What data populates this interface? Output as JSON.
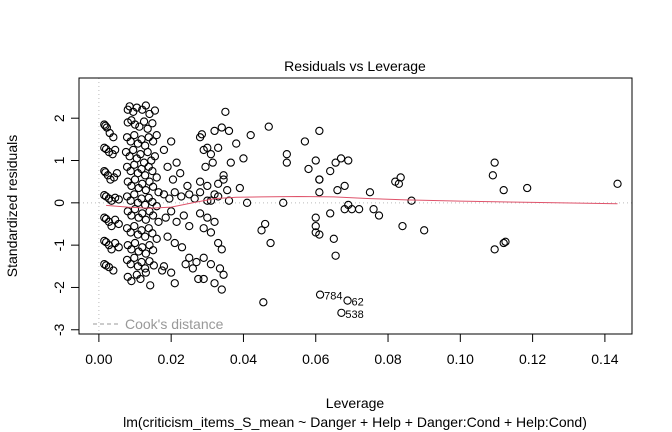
{
  "chart_data": {
    "type": "scatter",
    "title": "Residuals vs Leverage",
    "xlabel": "Leverage",
    "ylabel": "Standardized residuals",
    "subtitle": "lm(criticism_items_S_mean ~ Danger + Help + Danger:Cond + Help:Cond)",
    "xlim": [
      -0.0055,
      0.1475
    ],
    "ylim": [
      -3.1,
      2.95
    ],
    "x_ticks": [
      0.0,
      0.02,
      0.04,
      0.06,
      0.08,
      0.1,
      0.12,
      0.14
    ],
    "x_tick_labels": [
      "0.00",
      "0.02",
      "0.04",
      "0.06",
      "0.08",
      "0.10",
      "0.12",
      "0.14"
    ],
    "y_ticks": [
      -3,
      -2,
      -1,
      0,
      1,
      2
    ],
    "y_tick_labels": [
      "-3",
      "-2",
      "-1",
      "0",
      "1",
      "2"
    ],
    "grid": false,
    "legend": {
      "position": "bottom-left",
      "entries": [
        {
          "label": "Cook's distance",
          "style": "dashed",
          "color": "#999999"
        }
      ]
    },
    "reference_lines": {
      "y_zero_dotted": true,
      "x_zero_dotted": true,
      "color": "#bbbbbb"
    },
    "smooth_line": {
      "color": "#DF536B",
      "x": [
        0.002,
        0.008,
        0.014,
        0.02,
        0.026,
        0.032,
        0.038,
        0.045,
        0.055,
        0.065,
        0.075,
        0.085,
        0.1,
        0.12,
        0.1435
      ],
      "y": [
        -0.06,
        -0.1,
        -0.13,
        -0.1,
        0.0,
        0.1,
        0.13,
        0.14,
        0.15,
        0.14,
        0.1,
        0.07,
        0.04,
        0.01,
        -0.02
      ]
    },
    "labeled_points": [
      {
        "label": "784",
        "x": 0.0612,
        "y": -2.17
      },
      {
        "label": "62",
        "x": 0.0688,
        "y": -2.31
      },
      {
        "label": "538",
        "x": 0.0671,
        "y": -2.6
      }
    ],
    "points": [
      [
        0.0015,
        1.85
      ],
      [
        0.0018,
        1.82
      ],
      [
        0.0022,
        1.78
      ],
      [
        0.003,
        1.65
      ],
      [
        0.004,
        1.55
      ],
      [
        0.0015,
        1.3
      ],
      [
        0.002,
        1.27
      ],
      [
        0.0028,
        1.2
      ],
      [
        0.0038,
        1.15
      ],
      [
        0.0045,
        1.25
      ],
      [
        0.0015,
        0.75
      ],
      [
        0.0018,
        0.72
      ],
      [
        0.0025,
        0.65
      ],
      [
        0.0032,
        0.55
      ],
      [
        0.0042,
        0.6
      ],
      [
        0.005,
        0.7
      ],
      [
        0.0015,
        0.18
      ],
      [
        0.002,
        0.15
      ],
      [
        0.0028,
        0.1
      ],
      [
        0.0035,
        0.05
      ],
      [
        0.0045,
        0.12
      ],
      [
        0.0055,
        0.08
      ],
      [
        0.0015,
        -0.35
      ],
      [
        0.002,
        -0.38
      ],
      [
        0.0028,
        -0.45
      ],
      [
        0.0035,
        -0.55
      ],
      [
        0.0045,
        -0.4
      ],
      [
        0.0055,
        -0.5
      ],
      [
        0.0015,
        -0.9
      ],
      [
        0.002,
        -0.93
      ],
      [
        0.0028,
        -1.0
      ],
      [
        0.0035,
        -1.1
      ],
      [
        0.0045,
        -0.95
      ],
      [
        0.0055,
        -1.05
      ],
      [
        0.0015,
        -1.45
      ],
      [
        0.002,
        -1.48
      ],
      [
        0.0028,
        -1.52
      ],
      [
        0.004,
        -1.6
      ],
      [
        0.008,
        2.2
      ],
      [
        0.0085,
        2.28
      ],
      [
        0.0095,
        2.15
      ],
      [
        0.0105,
        2.25
      ],
      [
        0.012,
        2.2
      ],
      [
        0.013,
        2.3
      ],
      [
        0.014,
        2.1
      ],
      [
        0.0155,
        2.18
      ],
      [
        0.008,
        1.9
      ],
      [
        0.009,
        1.95
      ],
      [
        0.01,
        1.85
      ],
      [
        0.0112,
        1.8
      ],
      [
        0.0125,
        1.92
      ],
      [
        0.0135,
        1.75
      ],
      [
        0.0148,
        1.88
      ],
      [
        0.016,
        1.6
      ],
      [
        0.0078,
        1.55
      ],
      [
        0.0088,
        1.45
      ],
      [
        0.0098,
        1.6
      ],
      [
        0.0108,
        1.4
      ],
      [
        0.0118,
        1.5
      ],
      [
        0.0128,
        1.35
      ],
      [
        0.0138,
        1.55
      ],
      [
        0.015,
        1.45
      ],
      [
        0.0075,
        1.2
      ],
      [
        0.0085,
        1.1
      ],
      [
        0.0095,
        1.25
      ],
      [
        0.0105,
        1.05
      ],
      [
        0.0115,
        1.15
      ],
      [
        0.0125,
        0.95
      ],
      [
        0.0135,
        1.2
      ],
      [
        0.0145,
        1.0
      ],
      [
        0.0155,
        1.1
      ],
      [
        0.0078,
        0.85
      ],
      [
        0.0088,
        0.75
      ],
      [
        0.0098,
        0.9
      ],
      [
        0.0108,
        0.7
      ],
      [
        0.0118,
        0.8
      ],
      [
        0.0128,
        0.65
      ],
      [
        0.0138,
        0.85
      ],
      [
        0.0148,
        0.75
      ],
      [
        0.016,
        0.6
      ],
      [
        0.008,
        0.5
      ],
      [
        0.009,
        0.4
      ],
      [
        0.01,
        0.55
      ],
      [
        0.011,
        0.35
      ],
      [
        0.012,
        0.45
      ],
      [
        0.013,
        0.3
      ],
      [
        0.014,
        0.5
      ],
      [
        0.015,
        0.38
      ],
      [
        0.0165,
        0.25
      ],
      [
        0.0078,
        0.15
      ],
      [
        0.0088,
        0.05
      ],
      [
        0.0098,
        0.2
      ],
      [
        0.0108,
        0.0
      ],
      [
        0.0118,
        0.1
      ],
      [
        0.0128,
        -0.05
      ],
      [
        0.0138,
        0.12
      ],
      [
        0.0148,
        0.02
      ],
      [
        0.016,
        -0.08
      ],
      [
        0.008,
        -0.2
      ],
      [
        0.009,
        -0.3
      ],
      [
        0.01,
        -0.15
      ],
      [
        0.011,
        -0.35
      ],
      [
        0.012,
        -0.25
      ],
      [
        0.013,
        -0.4
      ],
      [
        0.014,
        -0.2
      ],
      [
        0.015,
        -0.3
      ],
      [
        0.0165,
        -0.45
      ],
      [
        0.0078,
        -0.6
      ],
      [
        0.0088,
        -0.7
      ],
      [
        0.0098,
        -0.55
      ],
      [
        0.0108,
        -0.75
      ],
      [
        0.0118,
        -0.65
      ],
      [
        0.0128,
        -0.8
      ],
      [
        0.0138,
        -0.6
      ],
      [
        0.0148,
        -0.72
      ],
      [
        0.016,
        -0.85
      ],
      [
        0.008,
        -1.0
      ],
      [
        0.009,
        -1.1
      ],
      [
        0.01,
        -0.95
      ],
      [
        0.011,
        -1.15
      ],
      [
        0.012,
        -1.05
      ],
      [
        0.013,
        -1.2
      ],
      [
        0.014,
        -1.0
      ],
      [
        0.015,
        -1.12
      ],
      [
        0.0078,
        -1.35
      ],
      [
        0.0088,
        -1.45
      ],
      [
        0.0098,
        -1.3
      ],
      [
        0.0108,
        -1.5
      ],
      [
        0.0118,
        -1.4
      ],
      [
        0.0128,
        -1.55
      ],
      [
        0.014,
        -1.38
      ],
      [
        0.0152,
        -1.48
      ],
      [
        0.008,
        -1.75
      ],
      [
        0.009,
        -1.85
      ],
      [
        0.0105,
        -1.7
      ],
      [
        0.0115,
        -1.8
      ],
      [
        0.013,
        -1.65
      ],
      [
        0.0142,
        -1.95
      ],
      [
        0.0175,
        -1.6
      ],
      [
        0.018,
        1.25
      ],
      [
        0.02,
        1.45
      ],
      [
        0.0215,
        0.95
      ],
      [
        0.019,
        0.85
      ],
      [
        0.0205,
        0.55
      ],
      [
        0.0225,
        0.7
      ],
      [
        0.0245,
        0.4
      ],
      [
        0.018,
        0.2
      ],
      [
        0.0195,
        0.1
      ],
      [
        0.021,
        0.25
      ],
      [
        0.0228,
        0.15
      ],
      [
        0.025,
        0.2
      ],
      [
        0.0265,
        0.1
      ],
      [
        0.028,
        0.25
      ],
      [
        0.03,
        0.05
      ],
      [
        0.032,
        0.2
      ],
      [
        0.0185,
        -0.35
      ],
      [
        0.02,
        -0.2
      ],
      [
        0.0215,
        -0.45
      ],
      [
        0.0235,
        -0.3
      ],
      [
        0.025,
        -0.55
      ],
      [
        0.019,
        -0.8
      ],
      [
        0.021,
        -0.95
      ],
      [
        0.023,
        -1.05
      ],
      [
        0.025,
        -1.3
      ],
      [
        0.027,
        -1.4
      ],
      [
        0.018,
        -1.5
      ],
      [
        0.02,
        -1.65
      ],
      [
        0.024,
        -1.45
      ],
      [
        0.026,
        -1.55
      ],
      [
        0.0275,
        -1.8
      ],
      [
        0.021,
        -1.9
      ],
      [
        0.028,
        1.55
      ],
      [
        0.0285,
        1.62
      ],
      [
        0.03,
        1.3
      ],
      [
        0.032,
        1.7
      ],
      [
        0.034,
        1.78
      ],
      [
        0.036,
        1.7
      ],
      [
        0.035,
        2.15
      ],
      [
        0.038,
        1.4
      ],
      [
        0.029,
        1.25
      ],
      [
        0.031,
        1.15
      ],
      [
        0.033,
        1.3
      ],
      [
        0.0295,
        0.85
      ],
      [
        0.0315,
        0.95
      ],
      [
        0.0345,
        0.65
      ],
      [
        0.0365,
        0.95
      ],
      [
        0.028,
        0.5
      ],
      [
        0.03,
        0.4
      ],
      [
        0.033,
        0.45
      ],
      [
        0.0345,
        0.55
      ],
      [
        0.0355,
        0.3
      ],
      [
        0.033,
        0.15
      ],
      [
        0.031,
        0.05
      ],
      [
        0.036,
        0.05
      ],
      [
        0.028,
        -0.25
      ],
      [
        0.03,
        -0.35
      ],
      [
        0.032,
        -0.45
      ],
      [
        0.029,
        -0.6
      ],
      [
        0.031,
        -0.7
      ],
      [
        0.033,
        -0.95
      ],
      [
        0.034,
        -1.1
      ],
      [
        0.029,
        -1.3
      ],
      [
        0.031,
        -1.45
      ],
      [
        0.0335,
        -1.55
      ],
      [
        0.0345,
        -1.7
      ],
      [
        0.029,
        -1.8
      ],
      [
        0.032,
        -1.9
      ],
      [
        0.034,
        -2.05
      ],
      [
        0.039,
        0.35
      ],
      [
        0.041,
        0.0
      ],
      [
        0.04,
        1.05
      ],
      [
        0.042,
        1.6
      ],
      [
        0.045,
        -0.65
      ],
      [
        0.046,
        -0.5
      ],
      [
        0.047,
        1.8
      ],
      [
        0.0475,
        -0.95
      ],
      [
        0.0455,
        -2.35
      ],
      [
        0.051,
        0.0
      ],
      [
        0.052,
        1.15
      ],
      [
        0.052,
        0.95
      ],
      [
        0.057,
        1.45
      ],
      [
        0.058,
        0.8
      ],
      [
        0.06,
        1.0
      ],
      [
        0.061,
        1.7
      ],
      [
        0.06,
        -0.35
      ],
      [
        0.06,
        -0.55
      ],
      [
        0.06,
        -0.7
      ],
      [
        0.061,
        -0.75
      ],
      [
        0.061,
        0.55
      ],
      [
        0.061,
        0.55
      ],
      [
        0.061,
        0.25
      ],
      [
        0.064,
        0.75
      ],
      [
        0.064,
        -0.25
      ],
      [
        0.065,
        -0.85
      ],
      [
        0.0655,
        -1.25
      ],
      [
        0.0655,
        0.95
      ],
      [
        0.066,
        0.3
      ],
      [
        0.067,
        1.05
      ],
      [
        0.068,
        0.4
      ],
      [
        0.068,
        -0.15
      ],
      [
        0.069,
        -0.05
      ],
      [
        0.069,
        1.0
      ],
      [
        0.07,
        -0.15
      ],
      [
        0.072,
        -0.15
      ],
      [
        0.075,
        0.25
      ],
      [
        0.076,
        -0.15
      ],
      [
        0.0775,
        -0.3
      ],
      [
        0.082,
        0.5
      ],
      [
        0.083,
        0.45
      ],
      [
        0.0835,
        0.6
      ],
      [
        0.084,
        -0.55
      ],
      [
        0.0865,
        0.05
      ],
      [
        0.09,
        -0.65
      ],
      [
        0.1095,
        0.95
      ],
      [
        0.109,
        0.65
      ],
      [
        0.112,
        0.3
      ],
      [
        0.1185,
        0.35
      ],
      [
        0.1095,
        -1.1
      ],
      [
        0.112,
        -0.95
      ],
      [
        0.1125,
        -0.92
      ],
      [
        0.1435,
        0.45
      ]
    ]
  }
}
